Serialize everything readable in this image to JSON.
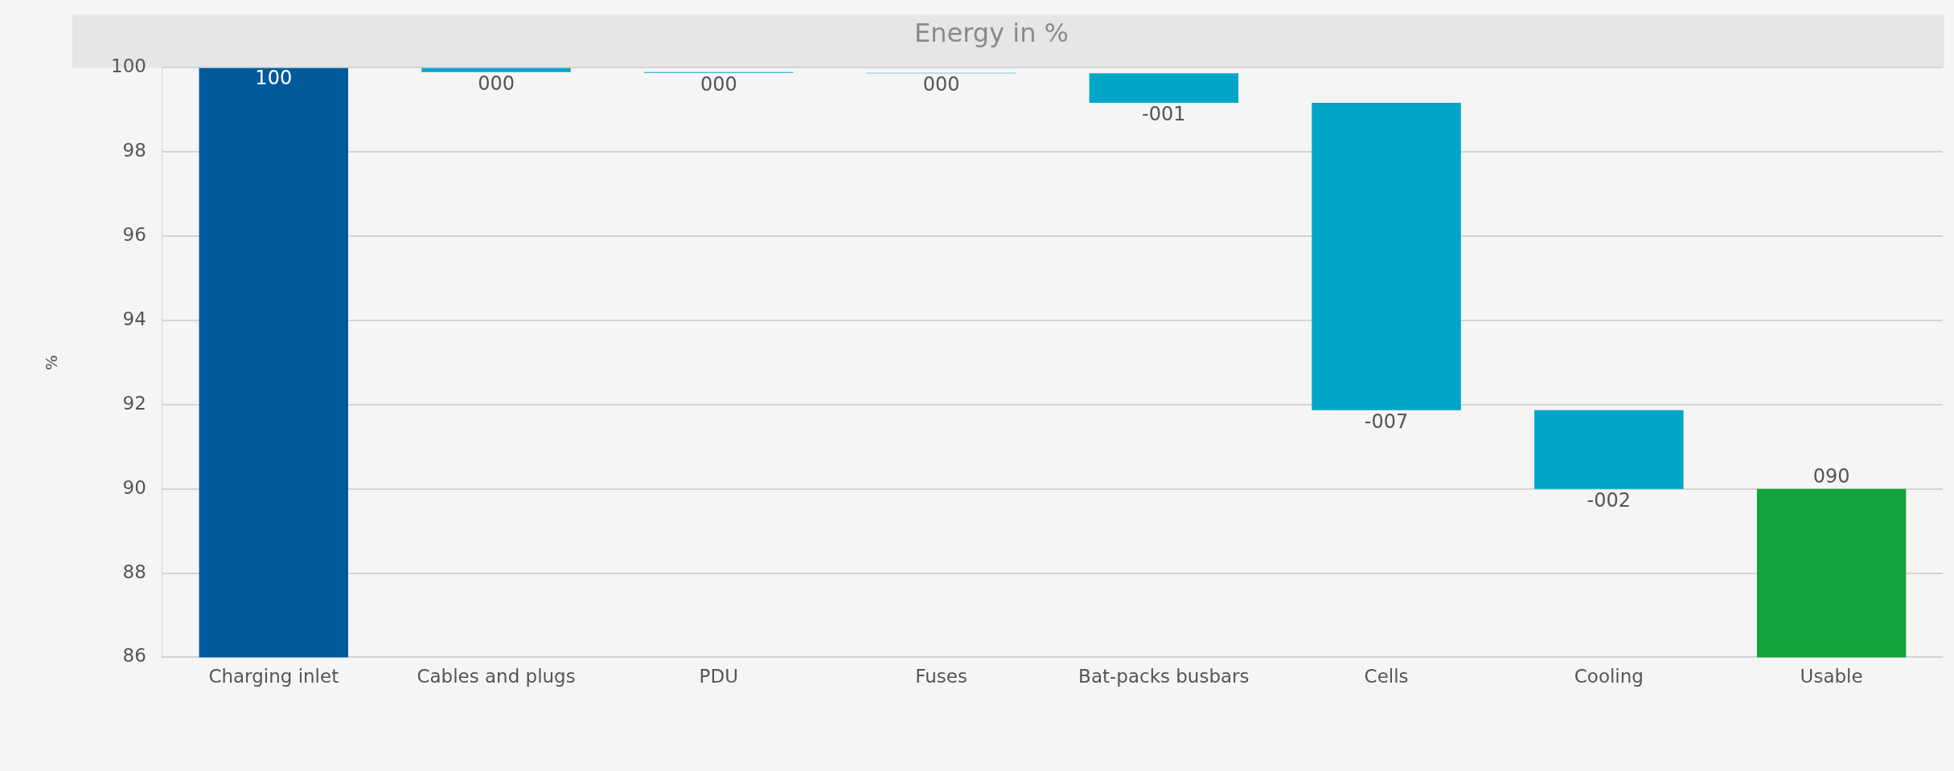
{
  "chart_data": {
    "type": "bar",
    "title": "Energy in %",
    "ylabel": "%",
    "categories": [
      "Charging inlet",
      "Cables and plugs",
      "PDU",
      "Fuses",
      "Bat-packs busbars",
      "Cells",
      "Cooling",
      "Usable"
    ],
    "values": [
      100,
      -0.1,
      -0.02,
      -0.01,
      -0.7,
      -7.3,
      -1.87,
      90
    ],
    "base": [
      null,
      100,
      99.9,
      99.88,
      99.87,
      99.17,
      91.87,
      null
    ],
    "colors": [
      "#005a9a",
      "#00a5c8",
      "#00a5c8",
      "#00a5c8",
      "#00a5c8",
      "#00a5c8",
      "#00a5c8",
      "#16a23a"
    ],
    "value_labels": [
      "100",
      "000",
      "000",
      "000",
      "-001",
      "-007",
      "-002",
      "090"
    ],
    "ylim": [
      86,
      100
    ],
    "yticks": [
      86,
      88,
      90,
      92,
      94,
      96,
      98,
      100
    ],
    "grid": "y",
    "legend": false
  }
}
